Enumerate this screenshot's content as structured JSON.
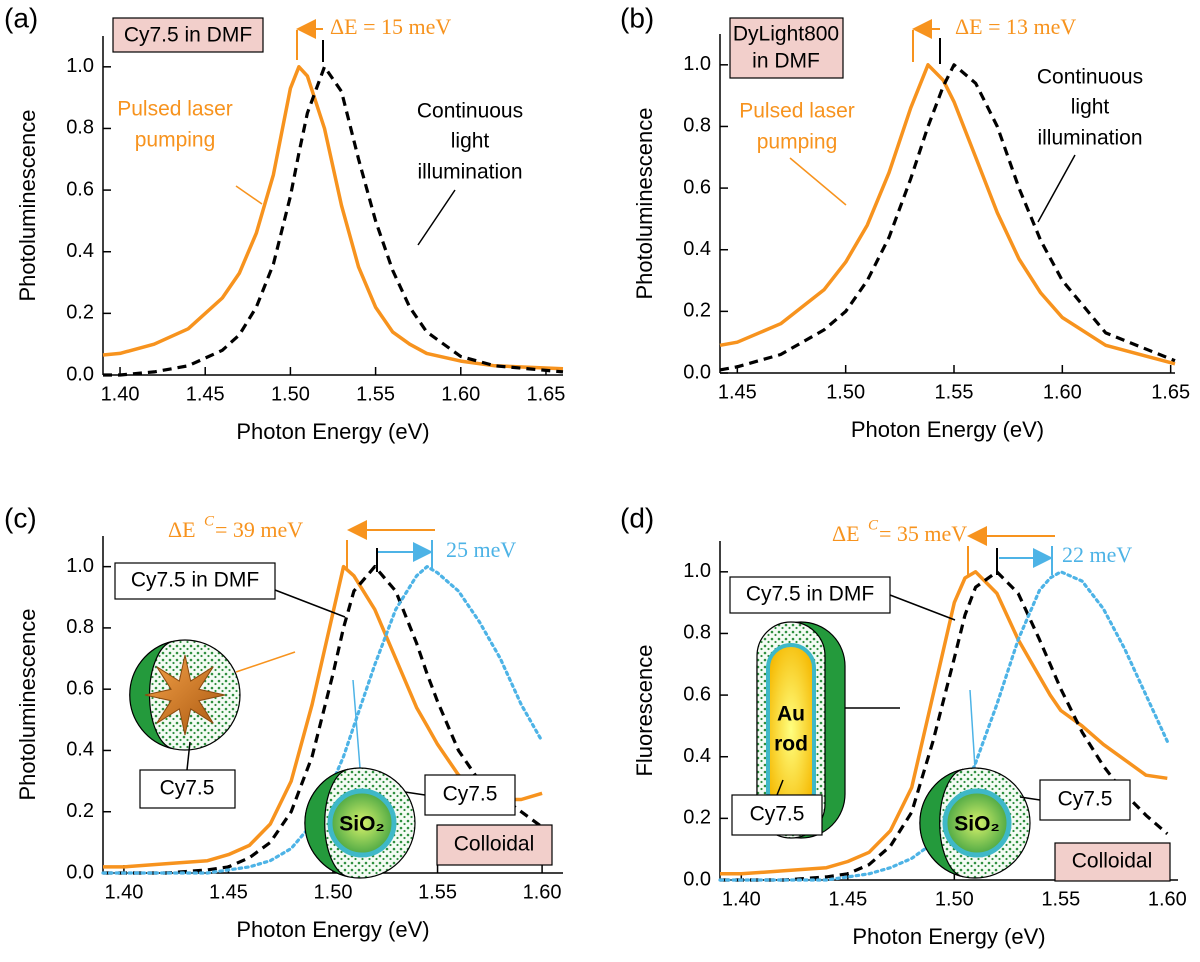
{
  "chart_data": [
    {
      "type": "line",
      "panel_label": "(a)",
      "xlabel": "Photon Energy (eV)",
      "ylabel": "Photoluminescence",
      "x": [
        1.39,
        1.4,
        1.42,
        1.44,
        1.46,
        1.47,
        1.48,
        1.49,
        1.5,
        1.505,
        1.51,
        1.52,
        1.53,
        1.54,
        1.55,
        1.56,
        1.57,
        1.58,
        1.6,
        1.62,
        1.66
      ],
      "series": [
        {
          "color": "#f7931e",
          "dash": "solid",
          "values": [
            0.065,
            0.07,
            0.1,
            0.15,
            0.25,
            0.33,
            0.46,
            0.65,
            0.93,
            1.0,
            0.97,
            0.8,
            0.55,
            0.35,
            0.22,
            0.14,
            0.1,
            0.07,
            0.045,
            0.03,
            0.02
          ]
        },
        {
          "color": "#000000",
          "dash": "dashed",
          "values": [
            0,
            0,
            0.01,
            0.03,
            0.08,
            0.13,
            0.22,
            0.36,
            0.58,
            0.72,
            0.85,
            1.0,
            0.92,
            0.7,
            0.5,
            0.34,
            0.22,
            0.14,
            0.06,
            0.03,
            0.01
          ]
        }
      ],
      "xlim": [
        1.39,
        1.66
      ],
      "ylim": [
        0,
        1.1
      ],
      "xticks": [
        {
          "value": 1.4,
          "label": "1.40"
        },
        {
          "value": 1.45,
          "label": "1.45"
        },
        {
          "value": 1.5,
          "label": "1.50"
        },
        {
          "value": 1.55,
          "label": "1.55"
        },
        {
          "value": 1.6,
          "label": "1.60"
        },
        {
          "value": 1.65,
          "label": "1.65"
        }
      ],
      "yticks": [
        {
          "value": 0,
          "label": "0.0"
        },
        {
          "value": 0.2,
          "label": "0.2"
        },
        {
          "value": 0.4,
          "label": "0.4"
        },
        {
          "value": 0.6,
          "label": "0.6"
        },
        {
          "value": 0.8,
          "label": "0.8"
        },
        {
          "value": 1.0,
          "label": "1.0"
        }
      ],
      "annotations": {
        "sample": "Cy7.5 in DMF",
        "shift": "ΔE = 15 meV",
        "orange_label": [
          "Pulsed laser",
          "pumping"
        ],
        "black_label": [
          "Continuous",
          "light",
          "illumination"
        ]
      }
    },
    {
      "type": "line",
      "panel_label": "(b)",
      "xlabel": "Photon Energy (eV)",
      "ylabel": "Photoluminescence",
      "x": [
        1.442,
        1.45,
        1.47,
        1.49,
        1.5,
        1.51,
        1.52,
        1.53,
        1.538,
        1.545,
        1.55,
        1.56,
        1.57,
        1.58,
        1.59,
        1.6,
        1.62,
        1.652
      ],
      "series": [
        {
          "color": "#f7931e",
          "dash": "solid",
          "values": [
            0.09,
            0.1,
            0.16,
            0.27,
            0.36,
            0.48,
            0.65,
            0.86,
            1.0,
            0.95,
            0.88,
            0.7,
            0.52,
            0.37,
            0.26,
            0.18,
            0.09,
            0.03
          ]
        },
        {
          "color": "#000000",
          "dash": "dashed",
          "values": [
            0.01,
            0.02,
            0.06,
            0.14,
            0.2,
            0.3,
            0.44,
            0.63,
            0.8,
            0.93,
            1.0,
            0.94,
            0.8,
            0.6,
            0.43,
            0.3,
            0.13,
            0.04
          ]
        }
      ],
      "xlim": [
        1.442,
        1.652
      ],
      "ylim": [
        0,
        1.1
      ],
      "xticks": [
        {
          "value": 1.45,
          "label": "1.45"
        },
        {
          "value": 1.5,
          "label": "1.50"
        },
        {
          "value": 1.55,
          "label": "1.55"
        },
        {
          "value": 1.6,
          "label": "1.60"
        },
        {
          "value": 1.65,
          "label": "1.65"
        }
      ],
      "yticks": [
        {
          "value": 0,
          "label": "0.0"
        },
        {
          "value": 0.2,
          "label": "0.2"
        },
        {
          "value": 0.4,
          "label": "0.4"
        },
        {
          "value": 0.6,
          "label": "0.6"
        },
        {
          "value": 0.8,
          "label": "0.8"
        },
        {
          "value": 1.0,
          "label": "1.0"
        }
      ],
      "annotations": {
        "sample": [
          "DyLight800",
          "in DMF"
        ],
        "shift": "ΔE = 13 meV",
        "orange_label": [
          "Pulsed laser",
          "pumping"
        ],
        "black_label": [
          "Continuous",
          "light",
          "illumination"
        ]
      }
    },
    {
      "type": "line",
      "panel_label": "(c)",
      "xlabel": "Photon Energy (eV)",
      "ylabel": "Photoluminescence",
      "x": [
        1.39,
        1.4,
        1.42,
        1.44,
        1.45,
        1.46,
        1.47,
        1.48,
        1.49,
        1.5,
        1.505,
        1.51,
        1.52,
        1.53,
        1.54,
        1.545,
        1.55,
        1.56,
        1.57,
        1.58,
        1.59,
        1.6
      ],
      "series": [
        {
          "color": "#f7931e",
          "dash": "solid",
          "values": [
            0.02,
            0.02,
            0.03,
            0.04,
            0.06,
            0.09,
            0.16,
            0.3,
            0.55,
            0.85,
            1.0,
            0.97,
            0.86,
            0.7,
            0.54,
            0.48,
            0.42,
            0.32,
            0.26,
            0.24,
            0.24,
            0.26
          ]
        },
        {
          "color": "#000000",
          "dash": "dashed",
          "values": [
            0,
            0,
            0,
            0.01,
            0.02,
            0.05,
            0.1,
            0.2,
            0.38,
            0.65,
            0.8,
            0.92,
            1.0,
            0.92,
            0.75,
            0.65,
            0.56,
            0.4,
            0.3,
            0.25,
            0.2,
            0.15
          ]
        },
        {
          "color": "#4db3e6",
          "dash": "dotted",
          "values": [
            0,
            0,
            0,
            0,
            0.01,
            0.02,
            0.04,
            0.08,
            0.16,
            0.3,
            0.38,
            0.48,
            0.68,
            0.86,
            0.97,
            1.0,
            0.98,
            0.92,
            0.82,
            0.7,
            0.55,
            0.43
          ]
        }
      ],
      "xlim": [
        1.39,
        1.61
      ],
      "ylim": [
        0,
        1.1
      ],
      "xticks": [
        {
          "value": 1.4,
          "label": "1.40"
        },
        {
          "value": 1.45,
          "label": "1.45"
        },
        {
          "value": 1.5,
          "label": "1.50"
        },
        {
          "value": 1.55,
          "label": "1.55"
        },
        {
          "value": 1.6,
          "label": "1.60"
        }
      ],
      "yticks": [
        {
          "value": 0,
          "label": "0.0"
        },
        {
          "value": 0.2,
          "label": "0.2"
        },
        {
          "value": 0.4,
          "label": "0.4"
        },
        {
          "value": 0.6,
          "label": "0.6"
        },
        {
          "value": 0.8,
          "label": "0.8"
        },
        {
          "value": 1.0,
          "label": "1.0"
        }
      ],
      "annotations": {
        "sample": "Cy7.5 in DMF",
        "shift_symbol": "ΔE",
        "shift_sup": "C",
        "shift_value": "= 39 meV",
        "blue_shift": "25 meV",
        "dye": [
          "Cy7.5",
          "Cy7.5"
        ],
        "core": "SiO₂",
        "medium": "Colloidal"
      }
    },
    {
      "type": "line",
      "panel_label": "(d)",
      "xlabel": "Photon Energy (eV)",
      "ylabel": "Fluorescence",
      "x": [
        1.39,
        1.4,
        1.42,
        1.44,
        1.45,
        1.46,
        1.47,
        1.48,
        1.49,
        1.5,
        1.505,
        1.51,
        1.52,
        1.53,
        1.54,
        1.545,
        1.55,
        1.56,
        1.57,
        1.58,
        1.59,
        1.6
      ],
      "series": [
        {
          "color": "#f7931e",
          "dash": "solid",
          "values": [
            0.02,
            0.02,
            0.03,
            0.04,
            0.06,
            0.09,
            0.16,
            0.3,
            0.6,
            0.9,
            0.98,
            1.0,
            0.93,
            0.78,
            0.66,
            0.6,
            0.55,
            0.5,
            0.44,
            0.39,
            0.34,
            0.33
          ]
        },
        {
          "color": "#000000",
          "dash": "dashed",
          "values": [
            0,
            0,
            0,
            0.01,
            0.02,
            0.05,
            0.11,
            0.22,
            0.45,
            0.72,
            0.86,
            0.95,
            1.0,
            0.93,
            0.78,
            0.7,
            0.62,
            0.48,
            0.37,
            0.28,
            0.21,
            0.15
          ]
        },
        {
          "color": "#4db3e6",
          "dash": "dotted",
          "values": [
            0,
            0,
            0,
            0,
            0.01,
            0.02,
            0.04,
            0.07,
            0.12,
            0.22,
            0.3,
            0.38,
            0.57,
            0.78,
            0.94,
            0.98,
            1.0,
            0.97,
            0.88,
            0.75,
            0.6,
            0.45
          ]
        }
      ],
      "xlim": [
        1.39,
        1.605
      ],
      "ylim": [
        0,
        1.1
      ],
      "xticks": [
        {
          "value": 1.4,
          "label": "1.40"
        },
        {
          "value": 1.45,
          "label": "1.45"
        },
        {
          "value": 1.5,
          "label": "1.50"
        },
        {
          "value": 1.55,
          "label": "1.55"
        },
        {
          "value": 1.6,
          "label": "1.60"
        }
      ],
      "yticks": [
        {
          "value": 0,
          "label": "0.0"
        },
        {
          "value": 0.2,
          "label": "0.2"
        },
        {
          "value": 0.4,
          "label": "0.4"
        },
        {
          "value": 0.6,
          "label": "0.6"
        },
        {
          "value": 0.8,
          "label": "0.8"
        },
        {
          "value": 1.0,
          "label": "1.0"
        }
      ],
      "annotations": {
        "sample": "Cy7.5 in DMF",
        "shift_symbol": "ΔE",
        "shift_sup": "C",
        "shift_value": "= 35 meV",
        "blue_shift": "22 meV",
        "dye": [
          "Cy7.5",
          "Cy7.5"
        ],
        "core": "SiO₂",
        "rod": [
          "Au",
          "rod"
        ],
        "medium": "Colloidal"
      }
    }
  ]
}
